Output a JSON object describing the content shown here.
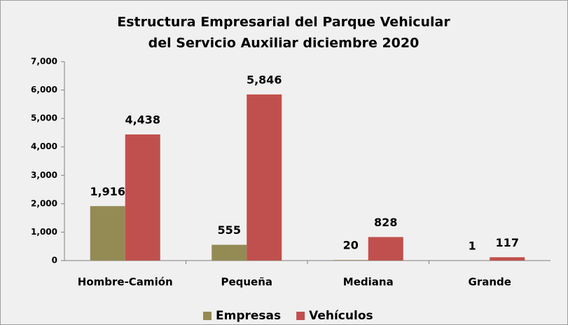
{
  "chart_data": {
    "type": "bar",
    "title": [
      "Estructura Empresarial del Parque Vehicular",
      "del Servicio Auxiliar diciembre 2020"
    ],
    "categories": [
      "Hombre-Camión",
      "Pequeña",
      "Mediana",
      "Grande"
    ],
    "series": [
      {
        "name": "Empresas",
        "color": "#948a54",
        "values": [
          1916,
          555,
          20,
          1
        ],
        "value_labels": [
          "1,916",
          "555",
          "20",
          "1"
        ]
      },
      {
        "name": "Vehículos",
        "color": "#c0504d",
        "values": [
          4438,
          5846,
          828,
          117
        ],
        "value_labels": [
          "4,438",
          "5,846",
          "828",
          "117"
        ]
      }
    ],
    "ylim": [
      0,
      7000
    ],
    "yticks": [
      0,
      {
        "value": 1000,
        "label": "1,000"
      },
      {
        "value": 2000,
        "label": "2,000"
      },
      {
        "value": 3000,
        "label": "3,000"
      },
      {
        "value": 4000,
        "label": "4,000"
      },
      {
        "value": 5000,
        "label": "5,000"
      },
      {
        "value": 6000,
        "label": "6,000"
      },
      {
        "value": 7000,
        "label": "7,000"
      }
    ],
    "grid": false,
    "legend": "bottom"
  }
}
